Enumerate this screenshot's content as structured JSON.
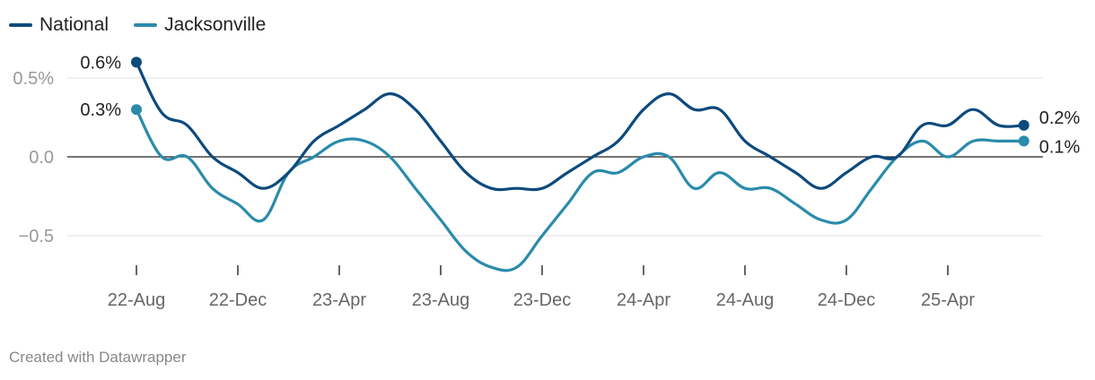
{
  "chart_data": {
    "type": "line",
    "title": "",
    "xlabel": "",
    "ylabel": "",
    "ylim": [
      -0.7,
      0.7
    ],
    "y_ticks": [
      {
        "value": 0.5,
        "label": "0.5%"
      },
      {
        "value": 0.0,
        "label": "0.0"
      },
      {
        "value": -0.5,
        "label": "−0.5"
      }
    ],
    "x_range": [
      0,
      34
    ],
    "x_ticks": [
      {
        "value": 0,
        "label": "22-Aug"
      },
      {
        "value": 4,
        "label": "22-Dec"
      },
      {
        "value": 8,
        "label": "23-Apr"
      },
      {
        "value": 12,
        "label": "23-Aug"
      },
      {
        "value": 16,
        "label": "23-Dec"
      },
      {
        "value": 20,
        "label": "24-Apr"
      },
      {
        "value": 24,
        "label": "24-Aug"
      },
      {
        "value": 28,
        "label": "24-Dec"
      },
      {
        "value": 32,
        "label": "25-Apr"
      }
    ],
    "grid": true,
    "legend": "top-left",
    "series": [
      {
        "name": "National",
        "color": "#0d4a7d",
        "end_label": "0.2%",
        "start_label": "0.6%",
        "values": [
          [
            0,
            0.6
          ],
          [
            1,
            0.28
          ],
          [
            2,
            0.2
          ],
          [
            3,
            0.0
          ],
          [
            4,
            -0.1
          ],
          [
            5,
            -0.2
          ],
          [
            6,
            -0.1
          ],
          [
            7,
            0.1
          ],
          [
            8,
            0.2
          ],
          [
            9,
            0.3
          ],
          [
            10,
            0.4
          ],
          [
            11,
            0.3
          ],
          [
            12,
            0.1
          ],
          [
            13,
            -0.1
          ],
          [
            14,
            -0.2
          ],
          [
            15,
            -0.2
          ],
          [
            16,
            -0.2
          ],
          [
            17,
            -0.1
          ],
          [
            18,
            0.0
          ],
          [
            19,
            0.1
          ],
          [
            20,
            0.3
          ],
          [
            21,
            0.4
          ],
          [
            22,
            0.3
          ],
          [
            23,
            0.3
          ],
          [
            24,
            0.1
          ],
          [
            25,
            0.0
          ],
          [
            26,
            -0.1
          ],
          [
            27,
            -0.2
          ],
          [
            28,
            -0.1
          ],
          [
            29,
            0.0
          ],
          [
            30,
            0.0
          ],
          [
            31,
            0.2
          ],
          [
            32,
            0.2
          ],
          [
            33,
            0.3
          ],
          [
            34,
            0.2
          ],
          [
            35,
            0.2
          ]
        ]
      },
      {
        "name": "Jacksonville",
        "color": "#2a8bab",
        "end_label": "0.1%",
        "start_label": "0.3%",
        "values": [
          [
            0,
            0.3
          ],
          [
            1,
            0.0
          ],
          [
            2,
            0.0
          ],
          [
            3,
            -0.2
          ],
          [
            4,
            -0.3
          ],
          [
            5,
            -0.4
          ],
          [
            6,
            -0.1
          ],
          [
            7,
            0.0
          ],
          [
            8,
            0.1
          ],
          [
            9,
            0.1
          ],
          [
            10,
            0.0
          ],
          [
            11,
            -0.2
          ],
          [
            12,
            -0.4
          ],
          [
            13,
            -0.6
          ],
          [
            14,
            -0.7
          ],
          [
            15,
            -0.7
          ],
          [
            16,
            -0.5
          ],
          [
            17,
            -0.3
          ],
          [
            18,
            -0.1
          ],
          [
            19,
            -0.1
          ],
          [
            20,
            0.0
          ],
          [
            21,
            0.0
          ],
          [
            22,
            -0.2
          ],
          [
            23,
            -0.1
          ],
          [
            24,
            -0.2
          ],
          [
            25,
            -0.2
          ],
          [
            26,
            -0.3
          ],
          [
            27,
            -0.4
          ],
          [
            28,
            -0.4
          ],
          [
            29,
            -0.2
          ],
          [
            30,
            0.0
          ],
          [
            31,
            0.1
          ],
          [
            32,
            0.0
          ],
          [
            33,
            0.1
          ],
          [
            34,
            0.1
          ],
          [
            35,
            0.1
          ]
        ]
      }
    ]
  },
  "footer": {
    "credit": "Created with Datawrapper"
  }
}
